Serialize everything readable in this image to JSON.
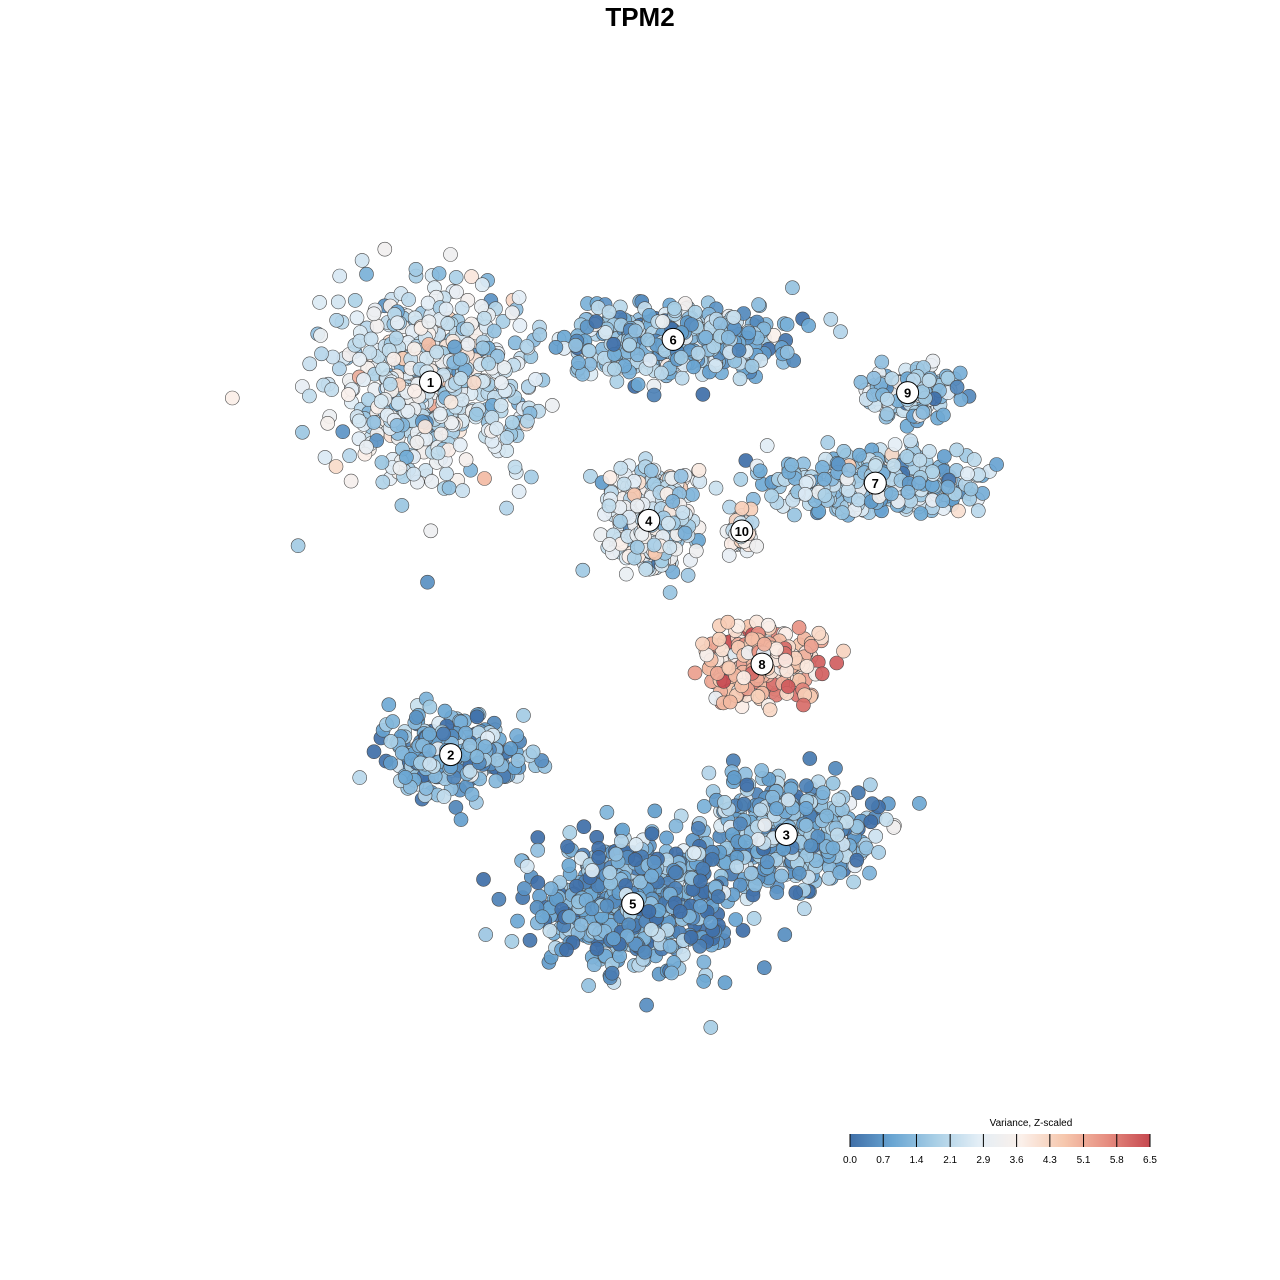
{
  "chart_data": {
    "type": "scatter",
    "title": "TPM2",
    "xlabel": "",
    "ylabel": "",
    "grid": false,
    "legend_placement": "bottom-right",
    "colorscale": {
      "title": "Variance, Z-scaled",
      "min": 0.0,
      "max": 6.5,
      "ticks": [
        "0.0",
        "0.7",
        "1.4",
        "2.1",
        "2.9",
        "3.6",
        "4.3",
        "5.1",
        "5.8",
        "6.5"
      ],
      "tick_values": [
        0.0,
        0.72,
        1.44,
        2.17,
        2.89,
        3.61,
        4.33,
        5.06,
        5.78,
        6.5
      ],
      "colors": [
        "#3f6fa8",
        "#6aa6d3",
        "#a9cfe6",
        "#e3eef6",
        "#fbf0ea",
        "#f6c7ad",
        "#e68d80",
        "#c6484f"
      ]
    },
    "clusters": [
      {
        "label": "1",
        "x": -58,
        "y": 58,
        "mean": 2.5,
        "spread": [
          22,
          16
        ],
        "n": 620
      },
      {
        "label": "2",
        "x": -53,
        "y": -12,
        "mean": 1.3,
        "spread": [
          14,
          7
        ],
        "n": 300
      },
      {
        "label": "3",
        "x": 30,
        "y": -27,
        "mean": 1.3,
        "spread": [
          18,
          9
        ],
        "n": 460
      },
      {
        "label": "4",
        "x": -4,
        "y": 32,
        "mean": 2.5,
        "spread": [
          10,
          9
        ],
        "n": 330
      },
      {
        "label": "5",
        "x": -8,
        "y": -40,
        "mean": 0.9,
        "spread": [
          20,
          11
        ],
        "n": 620
      },
      {
        "label": "6",
        "x": 2,
        "y": 66,
        "mean": 1.5,
        "spread": [
          24,
          6
        ],
        "n": 480
      },
      {
        "label": "7",
        "x": 52,
        "y": 39,
        "mean": 1.9,
        "spread": [
          22,
          5
        ],
        "n": 360
      },
      {
        "label": "8",
        "x": 24,
        "y": 5,
        "mean": 4.6,
        "spread": [
          12,
          6
        ],
        "n": 290
      },
      {
        "label": "9",
        "x": 60,
        "y": 56,
        "mean": 1.9,
        "spread": [
          10,
          4
        ],
        "n": 170
      },
      {
        "label": "10",
        "x": 19,
        "y": 30,
        "mean": 3.2,
        "spread": [
          3,
          4
        ],
        "n": 50
      }
    ],
    "xlim": [
      -115,
      115
    ],
    "ylim": [
      -75,
      95
    ]
  }
}
